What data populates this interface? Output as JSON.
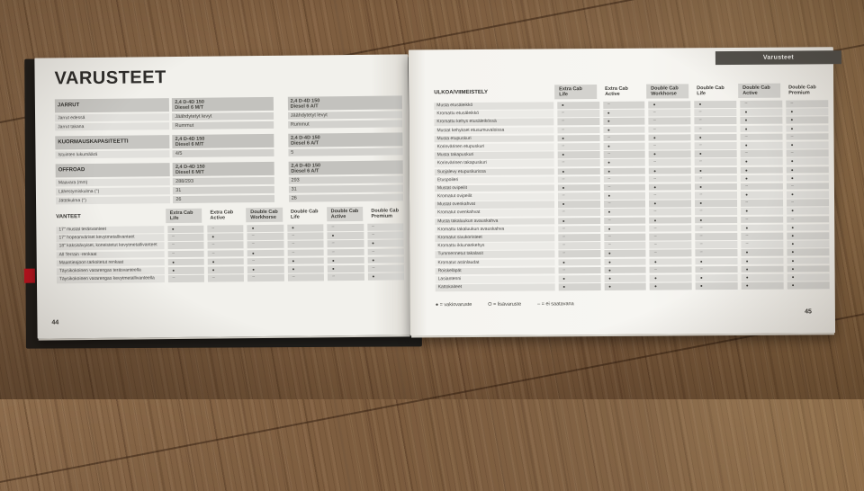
{
  "symbols": {
    "standard": "●",
    "optional": "O",
    "not_available": "–"
  },
  "colors": {
    "tab_bg": "#53514c",
    "bookmark_red": "#bf1420",
    "page": "#f5f4f0",
    "wood": "#7d5d3f"
  },
  "left_page": {
    "title": "VARUSTEET",
    "page_number": "44",
    "engine_cols": [
      {
        "line1": "2,4 D-4D 150",
        "line2": "Diesel 6 M/T"
      },
      {
        "line1": "2,4 D-4D 150",
        "line2": "Diesel 6 A/T"
      }
    ],
    "spec_sections": [
      {
        "name": "JARRUT",
        "rows": [
          {
            "label": "Jarrut edessä",
            "values": [
              "Jäähdytetyt levyt",
              "Jäähdytetyt levyt"
            ]
          },
          {
            "label": "Jarrut takana",
            "values": [
              "Rummut",
              "Rummut"
            ]
          }
        ]
      },
      {
        "name": "KUORMAUSKAPASITEETTI",
        "rows": [
          {
            "label": "Istuinten lukumäärä",
            "values": [
              "4/5",
              "5"
            ]
          }
        ]
      },
      {
        "name": "OFFROAD",
        "rows": [
          {
            "label": "Maavara (mm)",
            "values": [
              "288/293",
              "293"
            ]
          },
          {
            "label": "Lähestymiskulma (°)",
            "values": [
              "31",
              "31"
            ]
          },
          {
            "label": "Jättökulma (°)",
            "values": [
              "26",
              "26"
            ]
          }
        ]
      }
    ],
    "wheels_table": {
      "name": "VANTEET",
      "grade_cols": [
        {
          "line1": "Extra Cab",
          "line2": "Life"
        },
        {
          "line1": "Extra Cab",
          "line2": "Active"
        },
        {
          "line1": "Double Cab",
          "line2": "Workhorse"
        },
        {
          "line1": "Double Cab",
          "line2": "Life"
        },
        {
          "line1": "Double Cab",
          "line2": "Active"
        },
        {
          "line1": "Double Cab",
          "line2": "Premium"
        }
      ],
      "rows": [
        {
          "label": "17\" mustat teräsvanteet",
          "values": [
            "●",
            "–",
            "●",
            "●",
            "–",
            "–"
          ]
        },
        {
          "label": "17\" hopeanväriset kevytmetallivanteet",
          "values": [
            "–",
            "●",
            "–",
            "–",
            "●",
            "–"
          ]
        },
        {
          "label": "18\" kaksisävyiset, koneistetut kevytmetallivanteet",
          "values": [
            "–",
            "–",
            "–",
            "–",
            "–",
            "●"
          ]
        },
        {
          "label": "All Terrain -renkaat",
          "values": [
            "–",
            "–",
            "●",
            "–",
            "–",
            "–"
          ]
        },
        {
          "label": "Maantieajoon tarkoitetut renkaat",
          "values": [
            "●",
            "●",
            "–",
            "●",
            "●",
            "●"
          ]
        },
        {
          "label": "Täysikokoinen vararengas teräsvanteella",
          "values": [
            "●",
            "●",
            "●",
            "●",
            "●",
            "–"
          ]
        },
        {
          "label": "Täysikokoinen vararengas kevytmetallivanteella",
          "values": [
            "–",
            "–",
            "–",
            "–",
            "–",
            "●"
          ]
        }
      ]
    }
  },
  "right_page": {
    "section": "ULKOA/VIIMEISTELY",
    "page_number": "45",
    "tab": "Varusteet",
    "grade_cols": [
      {
        "line1": "Extra Cab",
        "line2": "Life"
      },
      {
        "line1": "Extra Cab",
        "line2": "Active"
      },
      {
        "line1": "Double Cab",
        "line2": "Workhorse"
      },
      {
        "line1": "Double Cab",
        "line2": "Life"
      },
      {
        "line1": "Double Cab",
        "line2": "Active"
      },
      {
        "line1": "Double Cab",
        "line2": "Premium"
      }
    ],
    "rows": [
      {
        "label": "Musta etusäleikkö",
        "values": [
          "●",
          "–",
          "●",
          "●",
          "–",
          "–"
        ]
      },
      {
        "label": "Kromattu etusäleikkö",
        "values": [
          "–",
          "●",
          "–",
          "–",
          "●",
          "●"
        ]
      },
      {
        "label": "Kromattu kehys etusäleikössä",
        "values": [
          "–",
          "●",
          "–",
          "–",
          "●",
          "●"
        ]
      },
      {
        "label": "Mustat kehykset etusumuvaloissa",
        "values": [
          "–",
          "●",
          "–",
          "–",
          "●",
          "●"
        ]
      },
      {
        "label": "Musta etupuskuri",
        "values": [
          "●",
          "–",
          "●",
          "●",
          "–",
          "–"
        ]
      },
      {
        "label": "Korinvärinen etupuskuri",
        "values": [
          "–",
          "●",
          "–",
          "–",
          "●",
          "●"
        ]
      },
      {
        "label": "Musta takapuskuri",
        "values": [
          "●",
          "–",
          "●",
          "●",
          "–",
          "–"
        ]
      },
      {
        "label": "Korinvärinen takapuskuri",
        "values": [
          "–",
          "●",
          "–",
          "–",
          "●",
          "●"
        ]
      },
      {
        "label": "Suojalevy etupuskurissa",
        "values": [
          "●",
          "●",
          "●",
          "●",
          "●",
          "●"
        ]
      },
      {
        "label": "Etuspoileri",
        "values": [
          "–",
          "–",
          "–",
          "–",
          "●",
          "●"
        ]
      },
      {
        "label": "Mustat ovipeilit",
        "values": [
          "●",
          "–",
          "●",
          "●",
          "–",
          "–"
        ]
      },
      {
        "label": "Kromatut ovipeilit",
        "values": [
          "–",
          "●",
          "–",
          "–",
          "●",
          "●"
        ]
      },
      {
        "label": "Mustat ovenkahvat",
        "values": [
          "●",
          "–",
          "●",
          "●",
          "–",
          "–"
        ]
      },
      {
        "label": "Kromatut ovenkahvat",
        "values": [
          "–",
          "●",
          "–",
          "–",
          "●",
          "●"
        ]
      },
      {
        "label": "Musta takaluukun avauskahva",
        "values": [
          "●",
          "–",
          "●",
          "●",
          "–",
          "–"
        ]
      },
      {
        "label": "Kromattu takaluukun avauskahva",
        "values": [
          "–",
          "●",
          "–",
          "–",
          "●",
          "●"
        ]
      },
      {
        "label": "Kromatut sivukoristeet",
        "values": [
          "–",
          "–",
          "–",
          "–",
          "–",
          "●"
        ]
      },
      {
        "label": "Kromattu ikkunankehys",
        "values": [
          "–",
          "–",
          "–",
          "–",
          "–",
          "●"
        ]
      },
      {
        "label": "Tummennetut takalasit",
        "values": [
          "–",
          "●",
          "–",
          "–",
          "●",
          "●"
        ]
      },
      {
        "label": "Kromatut astinlaudat",
        "values": [
          "●",
          "●",
          "●",
          "●",
          "●",
          "●"
        ]
      },
      {
        "label": "Roiskeläpät",
        "values": [
          "–",
          "●",
          "–",
          "–",
          "●",
          "●"
        ]
      },
      {
        "label": "Lasiantenni",
        "values": [
          "●",
          "●",
          "●",
          "●",
          "●",
          "●"
        ]
      },
      {
        "label": "Kattokaiteet",
        "values": [
          "●",
          "●",
          "●",
          "●",
          "●",
          "●"
        ]
      }
    ],
    "legend": [
      "● = vakiovaruste",
      "O = lisävaruste",
      "– = ei saatavana"
    ]
  }
}
